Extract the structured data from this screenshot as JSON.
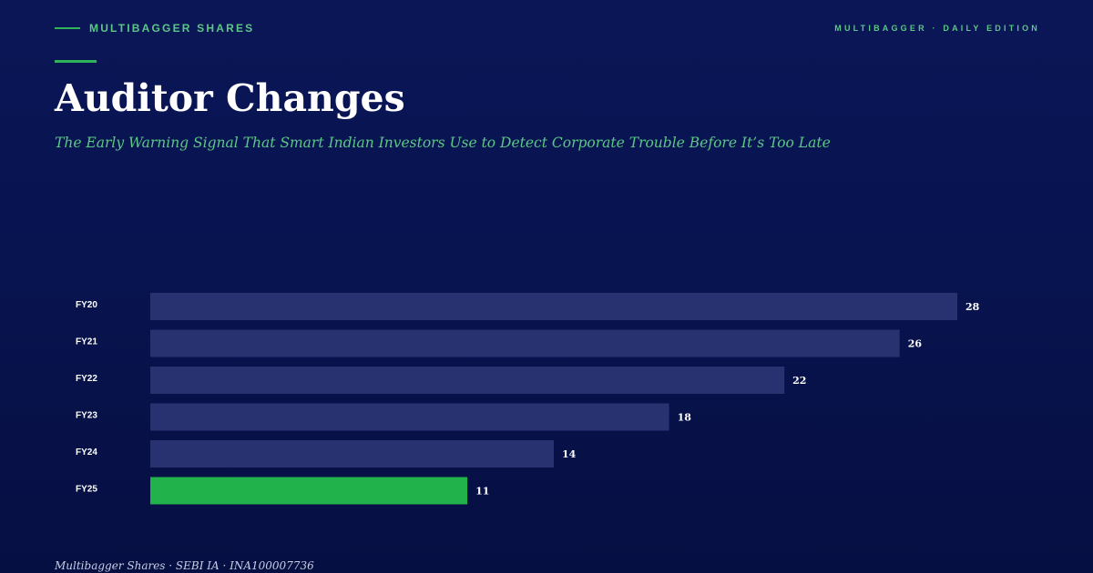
{
  "header": {
    "brand": "MULTIBAGGER SHARES",
    "edition": "MULTIBAGGER · DAILY EDITION"
  },
  "title": "Auditor Changes",
  "subtitle": "The Early Warning Signal That Smart Indian Investors Use to Detect Corporate Trouble Before It’s Too Late",
  "footer": "Multibagger Shares · SEBI IA · INA100007736",
  "colors": {
    "bar": "#293270",
    "highlight": "#22b24c",
    "accent": "#5cc786",
    "background": "#0a1656"
  },
  "chart_data": {
    "type": "bar",
    "orientation": "horizontal",
    "title": "",
    "xlabel": "",
    "ylabel": "",
    "categories": [
      "FY20",
      "FY21",
      "FY22",
      "FY23",
      "FY24",
      "FY25"
    ],
    "values": [
      28,
      26,
      22,
      18,
      14,
      11
    ],
    "highlight": "FY25",
    "xlim": [
      0,
      28
    ],
    "grid": false,
    "legend": "none"
  }
}
